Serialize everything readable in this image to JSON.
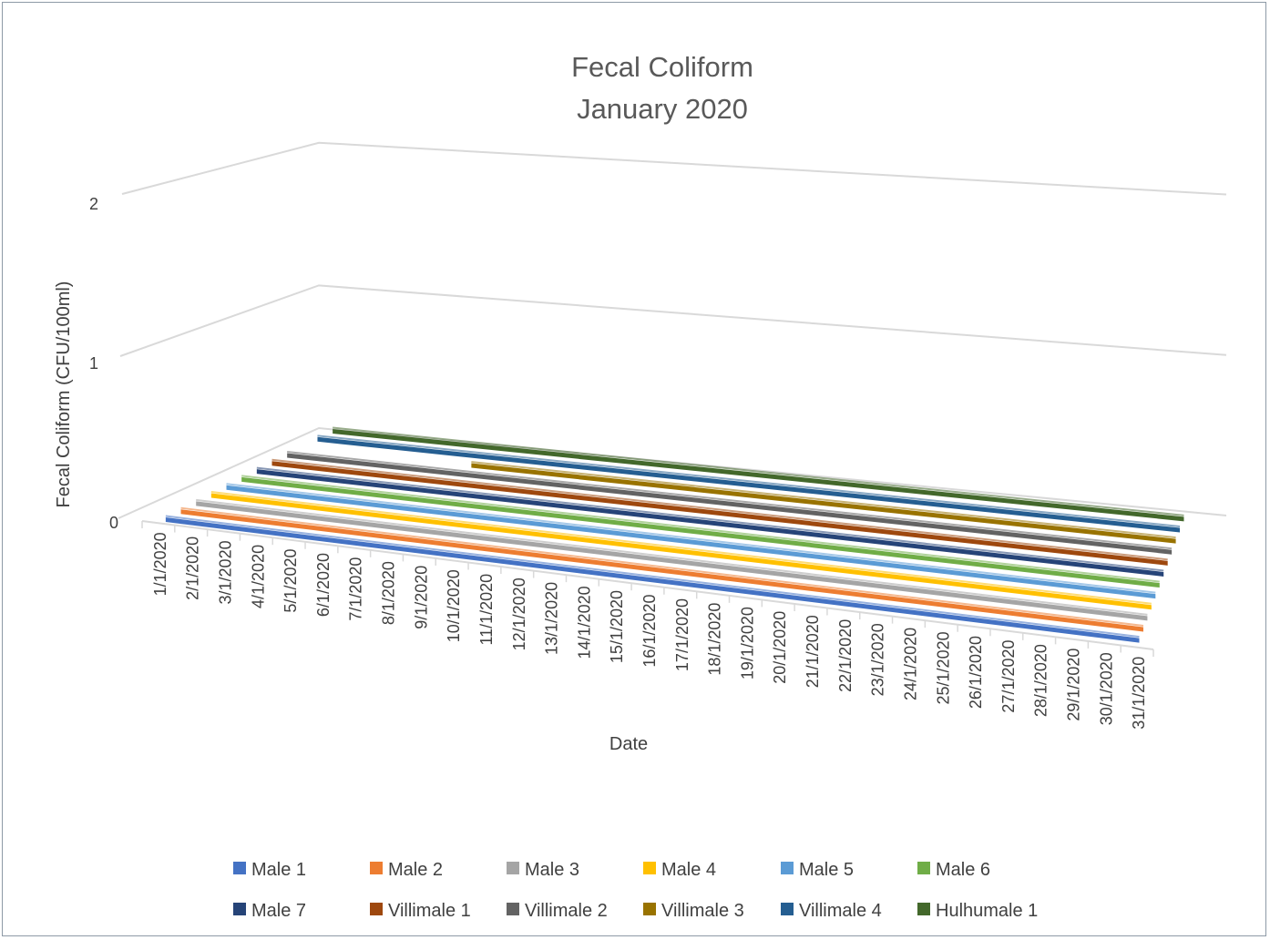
{
  "chart_data": {
    "type": "line",
    "style": "3d",
    "title": "Fecal Coliform",
    "subtitle": "January 2020",
    "xlabel": "Date",
    "ylabel": "Fecal Coliform (CFU/100ml)",
    "ylim": [
      0,
      2
    ],
    "yticks": [
      "0",
      "1",
      "2"
    ],
    "grid": true,
    "legend_position": "bottom",
    "categories": [
      "1/1/2020",
      "2/1/2020",
      "3/1/2020",
      "4/1/2020",
      "5/1/2020",
      "6/1/2020",
      "7/1/2020",
      "8/1/2020",
      "9/1/2020",
      "10/1/2020",
      "11/1/2020",
      "12/1/2020",
      "13/1/2020",
      "14/1/2020",
      "15/1/2020",
      "16/1/2020",
      "17/1/2020",
      "18/1/2020",
      "19/1/2020",
      "20/1/2020",
      "21/1/2020",
      "22/1/2020",
      "23/1/2020",
      "24/1/2020",
      "25/1/2020",
      "26/1/2020",
      "27/1/2020",
      "28/1/2020",
      "29/1/2020",
      "30/1/2020",
      "31/1/2020"
    ],
    "series": [
      {
        "name": "Male 1",
        "color": "#4472c4",
        "values": [
          0,
          0,
          0,
          0,
          0,
          0,
          0,
          0,
          0,
          0,
          0,
          0,
          0,
          0,
          0,
          0,
          0,
          0,
          0,
          0,
          0,
          0,
          0,
          0,
          0,
          0,
          0,
          0,
          0,
          0,
          0
        ]
      },
      {
        "name": "Male 2",
        "color": "#ed7d31",
        "values": [
          0,
          0,
          0,
          0,
          0,
          0,
          0,
          0,
          0,
          0,
          0,
          0,
          0,
          0,
          0,
          0,
          0,
          0,
          0,
          0,
          0,
          0,
          0,
          0,
          0,
          0,
          0,
          0,
          0,
          0,
          0
        ]
      },
      {
        "name": "Male 3",
        "color": "#a5a5a5",
        "values": [
          0,
          0,
          0,
          0,
          0,
          0,
          0,
          0,
          0,
          0,
          0,
          0,
          0,
          0,
          0,
          0,
          0,
          0,
          0,
          0,
          0,
          0,
          0,
          0,
          0,
          0,
          0,
          0,
          0,
          0,
          0
        ]
      },
      {
        "name": "Male 4",
        "color": "#ffc000",
        "values": [
          0,
          0,
          0,
          0,
          0,
          0,
          0,
          0,
          0,
          0,
          0,
          0,
          0,
          0,
          0,
          0,
          0,
          0,
          0,
          0,
          0,
          0,
          0,
          0,
          0,
          0,
          0,
          0,
          0,
          0,
          0
        ]
      },
      {
        "name": "Male 5",
        "color": "#5b9bd5",
        "values": [
          0,
          0,
          0,
          0,
          0,
          0,
          0,
          0,
          0,
          0,
          0,
          0,
          0,
          0,
          0,
          0,
          0,
          0,
          0,
          0,
          0,
          0,
          0,
          0,
          0,
          0,
          0,
          0,
          0,
          0,
          0
        ]
      },
      {
        "name": "Male 6",
        "color": "#70ad47",
        "values": [
          0,
          0,
          0,
          0,
          0,
          0,
          0,
          0,
          0,
          0,
          0,
          0,
          0,
          0,
          0,
          0,
          0,
          0,
          0,
          0,
          0,
          0,
          0,
          0,
          0,
          0,
          0,
          0,
          0,
          0,
          0
        ]
      },
      {
        "name": "Male 7",
        "color": "#264478",
        "values": [
          0,
          0,
          0,
          0,
          0,
          0,
          0,
          0,
          0,
          0,
          0,
          0,
          0,
          0,
          0,
          0,
          0,
          0,
          0,
          0,
          0,
          0,
          0,
          0,
          0,
          0,
          0,
          0,
          0,
          0,
          0
        ]
      },
      {
        "name": "Villimale 1",
        "color": "#9e480e",
        "values": [
          0,
          0,
          0,
          0,
          0,
          0,
          0,
          0,
          0,
          0,
          0,
          0,
          0,
          0,
          0,
          0,
          0,
          0,
          0,
          0,
          0,
          0,
          0,
          0,
          0,
          0,
          0,
          0,
          0,
          0,
          0
        ]
      },
      {
        "name": "Villimale 2",
        "color": "#636363",
        "values": [
          0,
          0,
          0,
          0,
          0,
          0,
          0,
          0,
          0,
          0,
          0,
          0,
          0,
          0,
          0,
          0,
          0,
          0,
          0,
          0,
          0,
          0,
          0,
          0,
          0,
          0,
          0,
          0,
          0,
          0,
          0
        ]
      },
      {
        "name": "Villimale 3",
        "color": "#997300",
        "values": [
          null,
          null,
          null,
          null,
          null,
          null,
          0,
          0,
          0,
          0,
          0,
          0,
          0,
          0,
          0,
          0,
          0,
          0,
          0,
          0,
          0,
          0,
          0,
          0,
          0,
          0,
          0,
          0,
          0,
          0,
          0
        ]
      },
      {
        "name": "Villimale 4",
        "color": "#255e91",
        "values": [
          0,
          0,
          0,
          0,
          0,
          0,
          0,
          0,
          0,
          0,
          0,
          0,
          0,
          0,
          0,
          0,
          0,
          0,
          0,
          0,
          0,
          0,
          0,
          0,
          0,
          0,
          0,
          0,
          0,
          0,
          0
        ]
      },
      {
        "name": "Hulhumale 1",
        "color": "#43682b",
        "values": [
          0,
          0,
          0,
          0,
          0,
          0,
          0,
          0,
          0,
          0,
          0,
          0,
          0,
          0,
          0,
          0,
          0,
          0,
          0,
          0,
          0,
          0,
          0,
          0,
          0,
          0,
          0,
          0,
          0,
          0,
          0
        ]
      }
    ]
  }
}
